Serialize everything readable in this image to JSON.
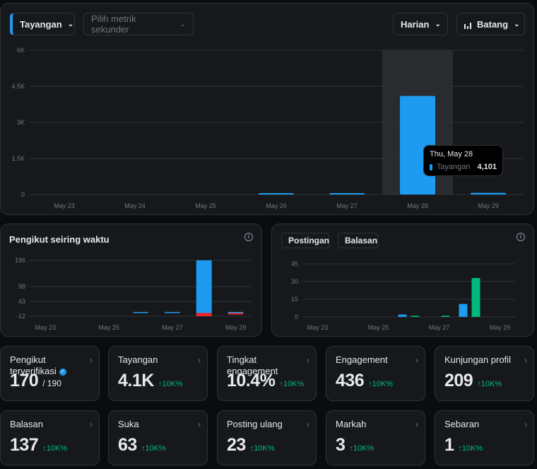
{
  "toolbar": {
    "primary_metric": "Tayangan",
    "secondary_metric_placeholder": "Pilih metrik sekunder",
    "interval": "Harian",
    "chart_type": "Batang"
  },
  "chart_data": [
    {
      "type": "bar",
      "categories": [
        "May 23",
        "May 24",
        "May 25",
        "May 26",
        "May 27",
        "May 28",
        "May 29"
      ],
      "yticks": [
        "0",
        "1.5K",
        "3K",
        "4.5K",
        "6K"
      ],
      "ylim": [
        0,
        6000
      ],
      "series": [
        {
          "name": "Tayangan",
          "values": [
            0,
            0,
            0,
            60,
            30,
            4101,
            70
          ]
        }
      ],
      "highlight": "May 28",
      "tooltip": {
        "date": "Thu, May 28",
        "series": "Tayangan",
        "value": "4,101"
      }
    },
    {
      "type": "bar",
      "title": "Pengikut seiring waktu",
      "categories": [
        "May 23",
        "May 24",
        "May 25",
        "May 26",
        "May 27",
        "May 28",
        "May 29"
      ],
      "xticks": [
        "May 23",
        "May 25",
        "May 27",
        "May 29"
      ],
      "yticks": [
        "196",
        "98",
        "43",
        "-12"
      ],
      "ylim": [
        -12,
        196
      ],
      "series": [
        {
          "name": "Pengikut",
          "values": [
            0,
            0,
            0,
            2,
            2,
            196,
            2
          ],
          "negative": [
            0,
            0,
            0,
            0,
            0,
            -12,
            -1
          ]
        }
      ]
    },
    {
      "type": "bar",
      "categories": [
        "May 23",
        "May 24",
        "May 25",
        "May 26",
        "May 27",
        "May 28",
        "May 29"
      ],
      "xticks": [
        "May 23",
        "May 25",
        "May 27",
        "May 29"
      ],
      "yticks": [
        "0",
        "15",
        "30",
        "45"
      ],
      "ylim": [
        0,
        45
      ],
      "series": [
        {
          "name": "Postingan",
          "values": [
            0,
            0,
            0,
            2,
            0,
            11,
            0
          ]
        },
        {
          "name": "Balasan",
          "values": [
            0,
            0,
            0,
            1,
            1,
            33,
            0
          ]
        }
      ]
    }
  ],
  "legend": {
    "posts": "Postingan",
    "replies": "Balasan"
  },
  "colors": {
    "blue": "#1d9bf0",
    "green": "#00ba7c",
    "red": "#f4212e"
  },
  "cards": [
    {
      "label": "Pengikut terverifikasi",
      "value": "170",
      "suffix": "/ 190",
      "verified": true
    },
    {
      "label": "Tayangan",
      "value": "4.1K",
      "delta": "10K%"
    },
    {
      "label": "Tingkat engagement",
      "value": "10.4%",
      "delta": "10K%"
    },
    {
      "label": "Engagement",
      "value": "436",
      "delta": "10K%"
    },
    {
      "label": "Kunjungan profil",
      "value": "209",
      "delta": "10K%"
    },
    {
      "label": "Balasan",
      "value": "137",
      "delta": "10K%"
    },
    {
      "label": "Suka",
      "value": "63",
      "delta": "10K%"
    },
    {
      "label": "Posting ulang",
      "value": "23",
      "delta": "10K%"
    },
    {
      "label": "Markah",
      "value": "3",
      "delta": "10K%"
    },
    {
      "label": "Sebaran",
      "value": "1",
      "delta": "10K%"
    }
  ]
}
